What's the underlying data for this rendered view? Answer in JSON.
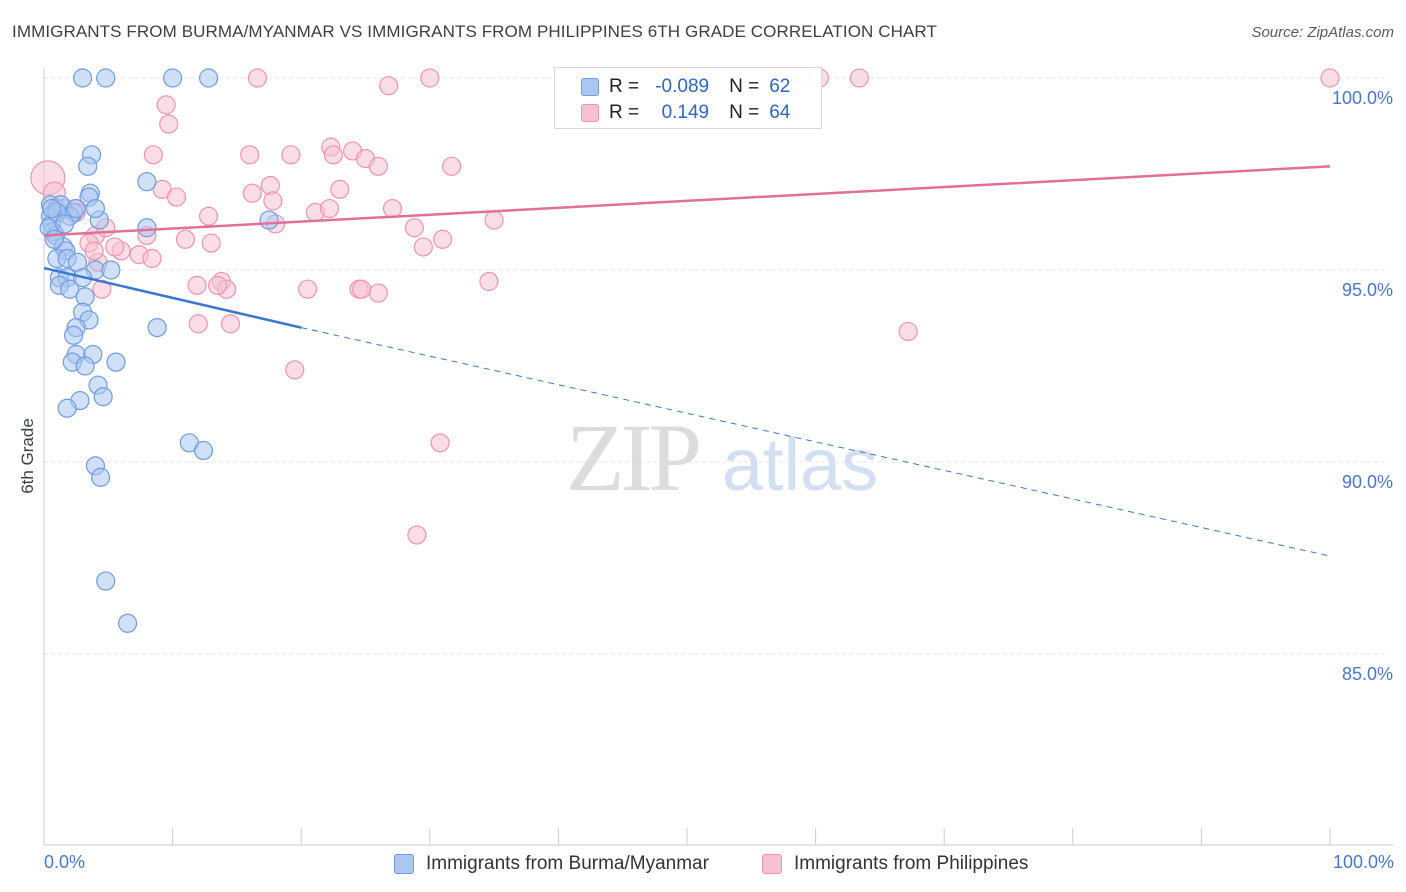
{
  "title": "IMMIGRANTS FROM BURMA/MYANMAR VS IMMIGRANTS FROM PHILIPPINES 6TH GRADE CORRELATION CHART",
  "source": "Source: ZipAtlas.com",
  "watermark": {
    "zip": "ZIP",
    "atlas": "atlas"
  },
  "legend": {
    "r_label": "R =",
    "n_label": "N =",
    "burma": {
      "r": "-0.089",
      "n": "62"
    },
    "philippines": {
      "r": "0.149",
      "n": "64"
    }
  },
  "bottom_legend": {
    "burma": "Immigrants from Burma/Myanmar",
    "philippines": "Immigrants from Philippines"
  },
  "colors": {
    "burma_fill": "#a9c7f0",
    "burma_stroke": "#6f9be0",
    "burma_line": "#3a78d0",
    "phil_fill": "#f7c1d2",
    "phil_stroke": "#ef94b0",
    "phil_line": "#e07098",
    "axis_label": "#4a78c8",
    "grid": "#e6e6e6"
  },
  "chart_data": {
    "type": "scatter",
    "title": "IMMIGRANTS FROM BURMA/MYANMAR VS IMMIGRANTS FROM PHILIPPINES 6TH GRADE CORRELATION CHART",
    "xlabel": "",
    "ylabel": "6th Grade",
    "xlim": [
      0,
      100
    ],
    "ylim": [
      80.5,
      100.8
    ],
    "x_tick_labels": [
      "0.0%",
      "100.0%"
    ],
    "y_ticks": [
      {
        "value": 100,
        "label": "100.0%"
      },
      {
        "value": 95,
        "label": "95.0%"
      },
      {
        "value": 90,
        "label": "90.0%"
      },
      {
        "value": 85,
        "label": "85.0%"
      }
    ],
    "series": [
      {
        "name": "Immigrants from Burma/Myanmar",
        "R": -0.089,
        "N": 62,
        "trend": {
          "x0": 0,
          "y0": 95.05,
          "x1": 20,
          "y1": 93.5,
          "x_dash_end": 100,
          "y_dash_end": 87.55
        },
        "points": [
          [
            3.0,
            100
          ],
          [
            4.8,
            100
          ],
          [
            10.0,
            100
          ],
          [
            12.8,
            100
          ],
          [
            3.7,
            98.0
          ],
          [
            3.4,
            97.7
          ],
          [
            8.0,
            97.3
          ],
          [
            3.6,
            97.0
          ],
          [
            3.5,
            96.9
          ],
          [
            0.5,
            96.7
          ],
          [
            1.0,
            96.6
          ],
          [
            1.5,
            96.6
          ],
          [
            2.3,
            96.5
          ],
          [
            0.5,
            96.4
          ],
          [
            0.6,
            96.2
          ],
          [
            4.3,
            96.3
          ],
          [
            8.0,
            96.1
          ],
          [
            17.5,
            96.3
          ],
          [
            0.7,
            96.0
          ],
          [
            0.9,
            95.9
          ],
          [
            1.5,
            95.6
          ],
          [
            1.7,
            95.5
          ],
          [
            1.0,
            95.3
          ],
          [
            1.8,
            95.3
          ],
          [
            2.6,
            95.2
          ],
          [
            4.0,
            95.0
          ],
          [
            5.2,
            95.0
          ],
          [
            1.2,
            94.8
          ],
          [
            1.8,
            94.8
          ],
          [
            3.0,
            94.8
          ],
          [
            1.2,
            94.6
          ],
          [
            2.0,
            94.5
          ],
          [
            3.2,
            94.3
          ],
          [
            3.0,
            93.9
          ],
          [
            3.5,
            93.7
          ],
          [
            2.5,
            93.5
          ],
          [
            2.3,
            93.3
          ],
          [
            8.8,
            93.5
          ],
          [
            2.5,
            92.8
          ],
          [
            3.8,
            92.8
          ],
          [
            2.2,
            92.6
          ],
          [
            3.2,
            92.5
          ],
          [
            5.6,
            92.6
          ],
          [
            4.2,
            92.0
          ],
          [
            4.6,
            91.7
          ],
          [
            2.8,
            91.6
          ],
          [
            1.8,
            91.4
          ],
          [
            11.3,
            90.5
          ],
          [
            12.4,
            90.3
          ],
          [
            4.0,
            89.9
          ],
          [
            4.4,
            89.6
          ],
          [
            4.8,
            86.9
          ],
          [
            6.5,
            85.8
          ],
          [
            0.4,
            96.1
          ],
          [
            1.3,
            96.7
          ],
          [
            0.8,
            95.8
          ],
          [
            2.0,
            96.4
          ],
          [
            1.0,
            96.5
          ],
          [
            4.0,
            96.6
          ],
          [
            1.6,
            96.2
          ],
          [
            0.6,
            96.6
          ],
          [
            2.5,
            96.6
          ]
        ]
      },
      {
        "name": "Immigrants from Philippines",
        "R": 0.149,
        "N": 64,
        "trend": {
          "x0": 0,
          "y0": 95.9,
          "x1": 100,
          "y1": 97.7
        },
        "points": [
          [
            0.3,
            97.4
          ],
          [
            0.8,
            97.0
          ],
          [
            2.4,
            96.6
          ],
          [
            2.5,
            96.5
          ],
          [
            4.0,
            95.9
          ],
          [
            3.5,
            95.7
          ],
          [
            4.8,
            96.1
          ],
          [
            4.5,
            94.5
          ],
          [
            9.7,
            98.8
          ],
          [
            9.5,
            99.3
          ],
          [
            8.5,
            98.0
          ],
          [
            9.2,
            97.1
          ],
          [
            10.3,
            96.9
          ],
          [
            8.0,
            95.9
          ],
          [
            11.0,
            95.8
          ],
          [
            12.8,
            96.4
          ],
          [
            13.0,
            95.7
          ],
          [
            11.9,
            94.6
          ],
          [
            12.0,
            93.6
          ],
          [
            13.8,
            94.7
          ],
          [
            14.2,
            94.5
          ],
          [
            13.5,
            94.6
          ],
          [
            14.5,
            93.6
          ],
          [
            16.0,
            98.0
          ],
          [
            16.2,
            97.0
          ],
          [
            17.6,
            97.2
          ],
          [
            17.8,
            96.8
          ],
          [
            18.0,
            96.2
          ],
          [
            19.2,
            98.0
          ],
          [
            16.6,
            100
          ],
          [
            19.5,
            92.4
          ],
          [
            20.5,
            94.5
          ],
          [
            22.3,
            98.2
          ],
          [
            22.5,
            98.0
          ],
          [
            23.0,
            97.1
          ],
          [
            24.0,
            98.1
          ],
          [
            25.0,
            97.9
          ],
          [
            26.0,
            97.7
          ],
          [
            21.1,
            96.5
          ],
          [
            22.2,
            96.6
          ],
          [
            24.5,
            94.5
          ],
          [
            26.0,
            94.4
          ],
          [
            24.7,
            94.5
          ],
          [
            27.1,
            96.6
          ],
          [
            28.8,
            96.1
          ],
          [
            26.8,
            99.8
          ],
          [
            30.0,
            100
          ],
          [
            31.0,
            95.8
          ],
          [
            31.7,
            97.7
          ],
          [
            35.0,
            96.3
          ],
          [
            34.6,
            94.7
          ],
          [
            30.8,
            90.5
          ],
          [
            29.0,
            88.1
          ],
          [
            60.3,
            100
          ],
          [
            63.4,
            100
          ],
          [
            67.2,
            93.4
          ],
          [
            100.0,
            100
          ],
          [
            7.4,
            95.4
          ],
          [
            6.0,
            95.5
          ],
          [
            5.5,
            95.6
          ],
          [
            8.4,
            95.3
          ],
          [
            4.2,
            95.2
          ],
          [
            3.9,
            95.5
          ],
          [
            29.5,
            95.6
          ]
        ]
      }
    ]
  }
}
